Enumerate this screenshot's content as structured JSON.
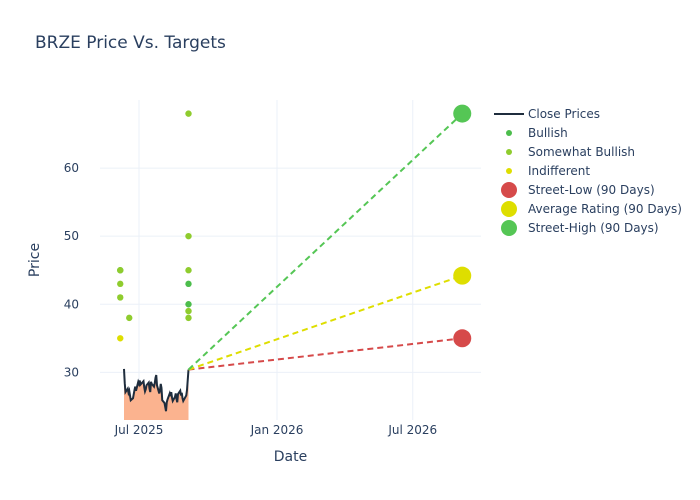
{
  "colors": {
    "close_line": "#1f2d3d",
    "close_fill": "#fbb38f",
    "bullish": "#4cbd4c",
    "somewhat_bullish": "#8fcc2e",
    "indifferent": "#dede00",
    "street_low": "#d64a4a",
    "average": "#dede00",
    "street_high": "#55c655",
    "grid": "#ebf0f8",
    "text": "#2a3f5f"
  },
  "chart_data": {
    "type": "scatter",
    "title": "BRZE Price Vs. Targets",
    "xlabel": "Date",
    "ylabel": "Price",
    "x_ticks": [
      {
        "label": "Jul 2025",
        "date": "2025-07-01"
      },
      {
        "label": "Jan 2026",
        "date": "2026-01-01"
      },
      {
        "label": "Jul 2026",
        "date": "2026-07-01"
      }
    ],
    "y_ticks": [
      30,
      40,
      50,
      60
    ],
    "xlim": [
      "2025-05-10",
      "2026-09-30"
    ],
    "ylim": [
      23,
      70
    ],
    "grid": true,
    "legend_position": "right",
    "close_prices": {
      "name": "Close Prices",
      "dates": [
        "2025-06-11",
        "2025-06-12",
        "2025-06-13",
        "2025-06-16",
        "2025-06-17",
        "2025-06-18",
        "2025-06-20",
        "2025-06-23",
        "2025-06-24",
        "2025-06-25",
        "2025-06-26",
        "2025-06-27",
        "2025-06-30",
        "2025-07-01",
        "2025-07-02",
        "2025-07-03",
        "2025-07-07",
        "2025-07-08",
        "2025-07-09",
        "2025-07-10",
        "2025-07-11",
        "2025-07-14",
        "2025-07-15",
        "2025-07-16",
        "2025-07-17",
        "2025-07-18",
        "2025-07-21",
        "2025-07-22",
        "2025-07-23",
        "2025-07-24",
        "2025-07-25",
        "2025-07-28",
        "2025-07-29",
        "2025-07-30",
        "2025-07-31",
        "2025-08-01",
        "2025-08-04",
        "2025-08-05",
        "2025-08-06",
        "2025-08-07",
        "2025-08-08",
        "2025-08-11",
        "2025-08-12",
        "2025-08-13",
        "2025-08-14",
        "2025-08-15",
        "2025-08-18",
        "2025-08-19",
        "2025-08-20",
        "2025-08-21",
        "2025-08-22",
        "2025-08-25",
        "2025-08-26",
        "2025-08-27",
        "2025-08-28",
        "2025-08-29",
        "2025-09-02",
        "2025-09-03",
        "2025-09-04",
        "2025-09-05"
      ],
      "values": [
        30.5,
        28.4,
        27.1,
        27.6,
        27.0,
        27.3,
        25.9,
        26.2,
        26.8,
        27.4,
        27.9,
        27.3,
        28.6,
        28.3,
        28.8,
        28.2,
        28.7,
        27.8,
        27.2,
        27.5,
        28.1,
        28.5,
        27.6,
        27.1,
        28.6,
        28.3,
        27.9,
        28.4,
        29.2,
        29.6,
        28.1,
        26.9,
        27.4,
        28.3,
        27.7,
        25.9,
        25.5,
        24.9,
        24.3,
        25.6,
        26.0,
        26.9,
        26.5,
        27.1,
        26.3,
        25.8,
        26.4,
        26.9,
        26.1,
        25.6,
        26.8,
        27.3,
        26.6,
        27.0,
        26.2,
        25.8,
        26.6,
        27.4,
        28.9,
        30.4
      ]
    },
    "analyst_ratings": [
      {
        "name": "Bullish",
        "points": [
          {
            "x": "2025-06-06",
            "y": 45
          },
          {
            "x": "2025-09-05",
            "y": 43
          },
          {
            "x": "2025-09-05",
            "y": 40
          }
        ]
      },
      {
        "name": "Somewhat Bullish",
        "points": [
          {
            "x": "2025-06-06",
            "y": 45
          },
          {
            "x": "2025-06-06",
            "y": 43
          },
          {
            "x": "2025-06-06",
            "y": 41
          },
          {
            "x": "2025-06-18",
            "y": 38
          },
          {
            "x": "2025-09-05",
            "y": 68
          },
          {
            "x": "2025-09-05",
            "y": 50
          },
          {
            "x": "2025-09-05",
            "y": 45
          },
          {
            "x": "2025-09-05",
            "y": 39
          },
          {
            "x": "2025-09-05",
            "y": 38
          }
        ]
      },
      {
        "name": "Indifferent",
        "points": [
          {
            "x": "2025-06-06",
            "y": 35
          }
        ]
      }
    ],
    "targets": [
      {
        "name": "Street-Low (90 Days)",
        "start": {
          "x": "2025-09-05",
          "y": 30.4
        },
        "end": {
          "x": "2026-09-05",
          "y": 35
        }
      },
      {
        "name": "Average Rating (90 Days)",
        "start": {
          "x": "2025-09-05",
          "y": 30.4
        },
        "end": {
          "x": "2026-09-05",
          "y": 44.2
        }
      },
      {
        "name": "Street-High (90 Days)",
        "start": {
          "x": "2025-09-05",
          "y": 30.4
        },
        "end": {
          "x": "2026-09-05",
          "y": 68
        }
      }
    ]
  }
}
